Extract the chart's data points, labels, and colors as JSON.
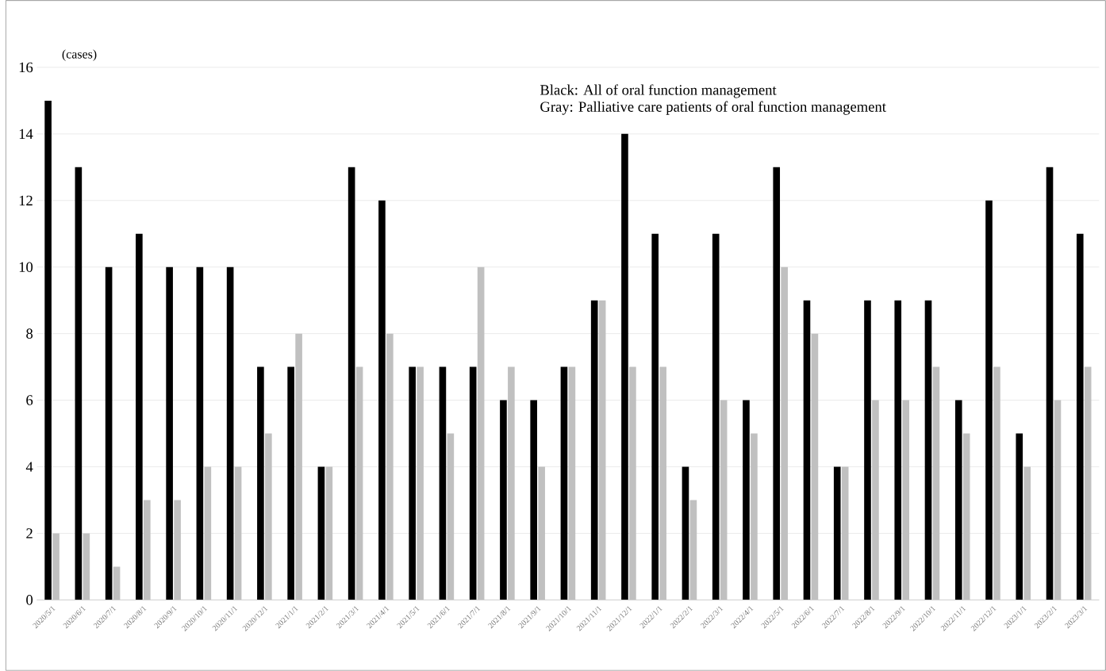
{
  "chart_data": {
    "type": "bar",
    "ylabel": "(cases)",
    "categories": [
      "2020/5/1",
      "2020/6/1",
      "2020/7/1",
      "2020/8/1",
      "2020/9/1",
      "2020/10/1",
      "2020/11/1",
      "2020/12/1",
      "2021/1/1",
      "2021/2/1",
      "2021/3/1",
      "2021/4/1",
      "2021/5/1",
      "2021/6/1",
      "2021/7/1",
      "2021/8/1",
      "2021/9/1",
      "2021/10/1",
      "2021/11/1",
      "2021/12/1",
      "2022/1/1",
      "2022/2/1",
      "2022/3/1",
      "2022/4/1",
      "2022/5/1",
      "2022/6/1",
      "2022/7/1",
      "2022/8/1",
      "2022/9/1",
      "2022/10/1",
      "2022/11/1",
      "2022/12/1",
      "2023/1/1",
      "2023/2/1",
      "2023/3/1"
    ],
    "series": [
      {
        "color": "#000000",
        "values": [
          15,
          13,
          10,
          11,
          10,
          10,
          10,
          7,
          7,
          4,
          13,
          12,
          7,
          7,
          7,
          6,
          6,
          7,
          9,
          14,
          11,
          4,
          11,
          6,
          13,
          9,
          4,
          9,
          9,
          9,
          6,
          12,
          5,
          13,
          11
        ]
      },
      {
        "color": "#c0c0c0",
        "values": [
          2,
          2,
          1,
          3,
          3,
          4,
          4,
          5,
          8,
          4,
          7,
          8,
          7,
          5,
          10,
          7,
          4,
          7,
          9,
          7,
          7,
          3,
          6,
          5,
          10,
          8,
          4,
          6,
          6,
          7,
          5,
          7,
          4,
          6,
          7
        ]
      }
    ],
    "ylim": [
      0,
      16
    ],
    "yticks": [
      0,
      2,
      4,
      6,
      8,
      10,
      12,
      14,
      16
    ],
    "grid": "y",
    "annotations": [
      "Black: All of oral function management",
      "Gray: Palliative care patients of oral function management"
    ]
  }
}
